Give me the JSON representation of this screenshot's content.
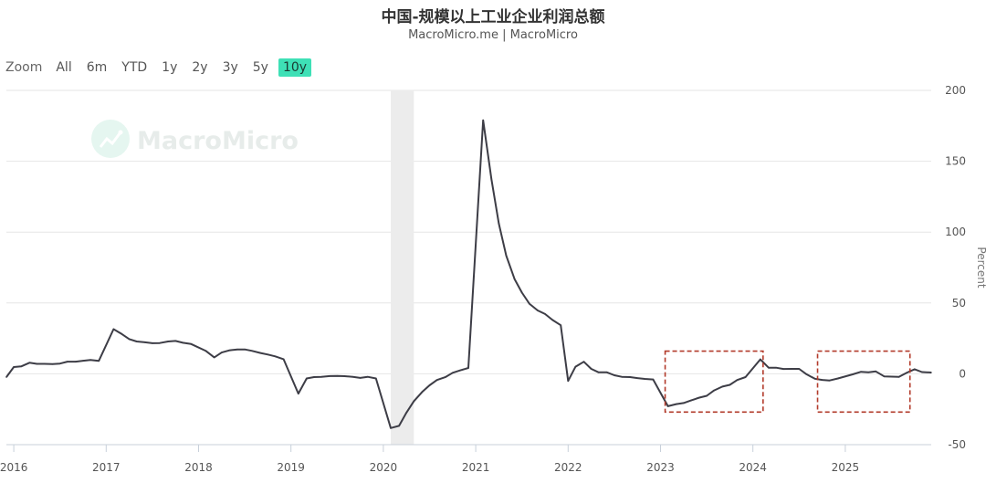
{
  "header": {
    "title": "中国-规模以上工业企业利润总额",
    "subtitle": "MacroMicro.me | MacroMicro"
  },
  "toolbar": {
    "zoom_label": "Zoom",
    "ranges": [
      "All",
      "6m",
      "YTD",
      "1y",
      "2y",
      "3y",
      "5y",
      "10y"
    ],
    "active_range": "10y",
    "active_color": "#3ee0b6"
  },
  "watermark": {
    "text": "MacroMicro",
    "icon": "chart-logo-icon"
  },
  "chart_data": {
    "type": "line",
    "title": "中国-规模以上工业企业利润总额",
    "ylabel": "Percent",
    "yaxis_side": "right",
    "ylim": [
      -50,
      200
    ],
    "yticks": [
      200,
      150,
      100,
      50,
      0,
      -50
    ],
    "xlim": [
      2015.92,
      2025.93
    ],
    "xticks": [
      "2016",
      "2017",
      "2018",
      "2019",
      "2020",
      "2021",
      "2022",
      "2023",
      "2024",
      "2025"
    ],
    "grid": "horizontal",
    "line_color": "#3d3d46",
    "shaded_period": {
      "from": 2020.08,
      "to": 2020.33
    },
    "highlight_boxes": [
      {
        "x_from": 2023.05,
        "x_to": 2024.11,
        "y_from": -27,
        "y_to": 16
      },
      {
        "x_from": 2024.7,
        "x_to": 2025.7,
        "y_from": -27,
        "y_to": 16
      }
    ],
    "series": [
      {
        "x": [
          2015.92,
          2016.0,
          2016.08,
          2016.17,
          2016.25,
          2016.33,
          2016.42,
          2016.5,
          2016.58,
          2016.67,
          2016.75,
          2016.83,
          2016.92,
          2017.08,
          2017.17,
          2017.25,
          2017.33,
          2017.42,
          2017.5,
          2017.58,
          2017.67,
          2017.75,
          2017.83,
          2017.92,
          2018.08,
          2018.17,
          2018.25,
          2018.33,
          2018.42,
          2018.5,
          2018.58,
          2018.67,
          2018.75,
          2018.83,
          2018.92,
          2019.08,
          2019.17,
          2019.25,
          2019.33,
          2019.42,
          2019.5,
          2019.58,
          2019.67,
          2019.75,
          2019.83,
          2019.92,
          2020.08,
          2020.17,
          2020.25,
          2020.33,
          2020.42,
          2020.5,
          2020.58,
          2020.67,
          2020.75,
          2020.83,
          2020.92,
          2021.08,
          2021.17,
          2021.25,
          2021.33,
          2021.42,
          2021.5,
          2021.58,
          2021.67,
          2021.75,
          2021.83,
          2021.92,
          2022.0,
          2022.08,
          2022.17,
          2022.25,
          2022.33,
          2022.42,
          2022.5,
          2022.58,
          2022.67,
          2022.75,
          2022.83,
          2022.92,
          2023.08,
          2023.17,
          2023.25,
          2023.33,
          2023.42,
          2023.5,
          2023.58,
          2023.67,
          2023.75,
          2023.83,
          2023.92,
          2024.08,
          2024.17,
          2024.25,
          2024.33,
          2024.42,
          2024.5,
          2024.58,
          2024.67,
          2024.75,
          2024.83,
          2024.92,
          2025.08,
          2025.17,
          2025.25,
          2025.33,
          2025.42,
          2025.5,
          2025.58,
          2025.67,
          2025.75,
          2025.83,
          2025.93
        ],
        "values": [
          -2.3,
          4.8,
          5.2,
          7.8,
          7.0,
          7.0,
          6.8,
          7.2,
          8.6,
          8.6,
          9.2,
          9.8,
          9.1,
          31.5,
          28.0,
          24.5,
          22.8,
          22.2,
          21.6,
          21.7,
          22.8,
          23.2,
          21.9,
          21.0,
          16.1,
          11.6,
          15.0,
          16.5,
          17.2,
          17.2,
          16.2,
          14.7,
          13.6,
          12.3,
          10.3,
          -14.0,
          -3.3,
          -2.3,
          -2.1,
          -1.6,
          -1.5,
          -1.7,
          -2.1,
          -2.9,
          -2.1,
          -3.3,
          -38.3,
          -36.7,
          -27.4,
          -19.3,
          -12.8,
          -8.1,
          -4.4,
          -2.4,
          0.7,
          2.4,
          4.1,
          178.9,
          137.3,
          106.0,
          83.4,
          66.9,
          57.3,
          49.5,
          44.7,
          42.2,
          38.0,
          34.3,
          -5.0,
          5.0,
          8.5,
          3.5,
          1.0,
          1.0,
          -1.0,
          -2.1,
          -2.3,
          -3.0,
          -3.6,
          -4.0,
          -22.9,
          -21.4,
          -20.6,
          -18.8,
          -16.8,
          -15.5,
          -11.7,
          -9.0,
          -7.8,
          -4.4,
          -2.3,
          10.2,
          4.3,
          4.3,
          3.4,
          3.5,
          3.5,
          -0.3,
          -3.5,
          -4.3,
          -4.7,
          -3.3,
          -0.4,
          1.4,
          1.0,
          1.7,
          -1.8,
          -2.0,
          -2.2,
          0.9,
          3.2,
          1.2,
          0.9
        ]
      }
    ]
  }
}
